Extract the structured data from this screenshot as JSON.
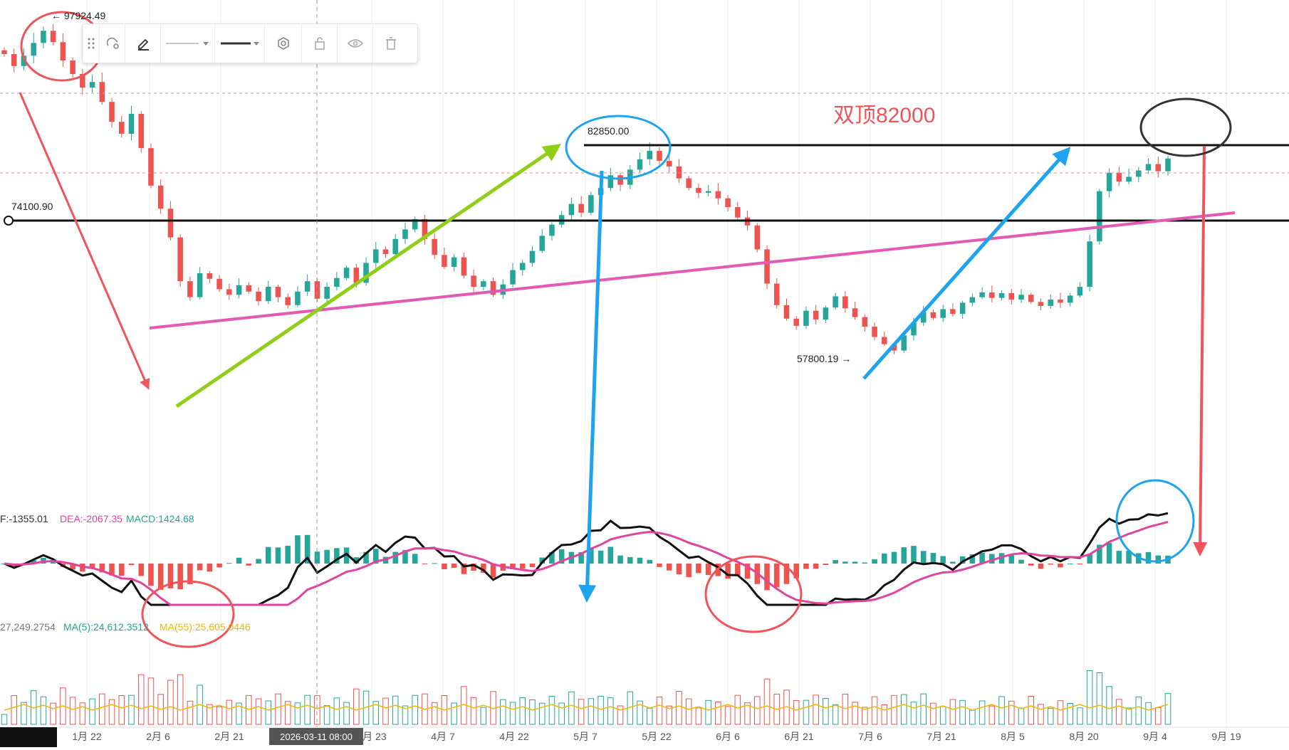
{
  "annotations": {
    "double_top_text": "双顶82000",
    "price_high": "← 97924.49",
    "price_peak": "82850.00",
    "price_support": "74100.90",
    "price_low": "57800.19 →"
  },
  "indicators": {
    "macd_dif": "F:-1355.01",
    "macd_dea": "DEA:-2067.35",
    "macd_val": "MACD:1424.68",
    "vol_value": "27,249.2754",
    "vol_ma5": "MA(5):24,612.3512",
    "vol_ma55": "MA(55):25,605.0446"
  },
  "crosshair": {
    "date_label": "2026-03-11 08:00"
  },
  "toolbar": {
    "icons": [
      "drag-handle-icon",
      "magnet-icon",
      "pencil-icon",
      "line-style-icon",
      "line-width-icon",
      "settings-icon",
      "lock-icon",
      "eye-icon",
      "trash-icon"
    ]
  },
  "colors": {
    "up": "#26a69a",
    "down": "#ef5350",
    "annotation_red": "#f0545a",
    "annotation_blue": "#1ea3ef",
    "annotation_green": "#8fcf1a",
    "trendline_pink": "#e25ab4",
    "dea_line": "#e0449e",
    "ma55": "#f2b705"
  },
  "chart_data": {
    "type": "candlestick",
    "x_ticks": [
      "1月 22",
      "2月 6",
      "2月 21",
      "3月 23",
      "4月 7",
      "4月 22",
      "5月 7",
      "5月 22",
      "6月 6",
      "6月 21",
      "7月 6",
      "7月 21",
      "8月 5",
      "8月 20",
      "9月 4",
      "9月 19"
    ],
    "levels": {
      "resistance": 82850.0,
      "support": 74100.9,
      "all_time_high": 97924.49,
      "swing_low": 57800.19
    },
    "close_series_approx": [
      95000,
      93500,
      94800,
      96400,
      97924,
      96500,
      94200,
      92500,
      90800,
      91500,
      89000,
      86500,
      85000,
      87500,
      83200,
      78500,
      75600,
      72000,
      66500,
      64500,
      67500,
      66800,
      65500,
      64800,
      66000,
      65200,
      64000,
      65800,
      64500,
      63500,
      65200,
      66500,
      64300,
      65800,
      66900,
      68200,
      66300,
      68800,
      70500,
      69900,
      71800,
      73000,
      74300,
      71800,
      69800,
      68300,
      69500,
      67200,
      65800,
      66500,
      64800,
      66100,
      67900,
      68800,
      70300,
      72200,
      73600,
      74800,
      76200,
      75100,
      77300,
      78200,
      79800,
      78600,
      80500,
      81800,
      82850,
      81600,
      80900,
      79400,
      78200,
      77600,
      77800,
      76900,
      75800,
      74500,
      73500,
      70500,
      66200,
      63500,
      61800,
      60900,
      62800,
      61700,
      63200,
      64600,
      63100,
      62000,
      60800,
      59500,
      58600,
      57800,
      59700,
      61300,
      62600,
      61900,
      63000,
      62400,
      63800,
      64500,
      65100,
      64400,
      65000,
      64200,
      64800,
      63900,
      63400,
      64200,
      63800,
      64700,
      65800,
      71500,
      77800,
      80100,
      79000,
      79600,
      80400,
      81200,
      80300,
      81900
    ],
    "macd": {
      "dif": -1355.01,
      "dea": -2067.35,
      "macd": 1424.68
    },
    "volume": {
      "last": 27249.2754,
      "ma5": 24612.3512,
      "ma55": 25605.0446
    }
  }
}
